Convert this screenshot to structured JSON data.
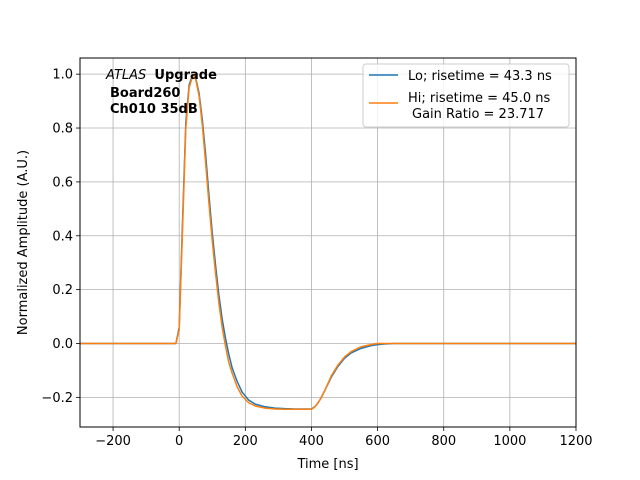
{
  "chart_data": {
    "type": "line",
    "xlabel": "Time [ns]",
    "ylabel": "Normalized Amplitude (A.U.)",
    "xlim": [
      -300,
      1200
    ],
    "ylim": [
      -0.31,
      1.06
    ],
    "x_ticks": [
      -200,
      0,
      200,
      400,
      600,
      800,
      1000,
      1200
    ],
    "y_ticks": [
      -0.2,
      0.0,
      0.2,
      0.4,
      0.6,
      0.8,
      1.0
    ],
    "x_tick_labels": [
      "−200",
      "0",
      "200",
      "400",
      "600",
      "800",
      "1000",
      "1200"
    ],
    "y_tick_labels": [
      "−0.2",
      "0.0",
      "0.2",
      "0.4",
      "0.6",
      "0.8",
      "1.0"
    ],
    "grid": true,
    "legend_position": "top-right",
    "annotation": {
      "atlas": "ATLAS",
      "upgrade": "Upgrade",
      "board": "Board260",
      "channel": "Ch010 35dB"
    },
    "series": [
      {
        "name": "Lo; risetime = 43.3 ns",
        "color": "#1f77b4",
        "x": [
          -300,
          -10,
          0,
          10,
          20,
          30,
          40,
          45,
          50,
          60,
          70,
          80,
          90,
          100,
          110,
          120,
          130,
          140,
          150,
          160,
          175,
          190,
          210,
          230,
          260,
          290,
          320,
          350,
          380,
          400,
          410,
          420,
          430,
          440,
          450,
          460,
          480,
          500,
          520,
          550,
          580,
          600,
          620,
          650,
          700,
          1200
        ],
        "y": [
          0.0,
          0.0,
          0.06,
          0.45,
          0.82,
          0.96,
          0.995,
          1.0,
          0.985,
          0.93,
          0.83,
          0.7,
          0.55,
          0.41,
          0.29,
          0.18,
          0.09,
          0.02,
          -0.04,
          -0.09,
          -0.14,
          -0.18,
          -0.21,
          -0.225,
          -0.235,
          -0.24,
          -0.242,
          -0.243,
          -0.243,
          -0.243,
          -0.235,
          -0.22,
          -0.2,
          -0.175,
          -0.15,
          -0.125,
          -0.085,
          -0.055,
          -0.035,
          -0.018,
          -0.008,
          -0.004,
          -0.002,
          0.0,
          0.0,
          0.0
        ]
      },
      {
        "name": "Hi; risetime = 45.0 ns",
        "name_line2": "Gain Ratio = 23.717",
        "color": "#ff7f0e",
        "x": [
          -300,
          -10,
          0,
          10,
          20,
          30,
          40,
          45,
          50,
          60,
          70,
          80,
          90,
          100,
          110,
          120,
          130,
          140,
          150,
          160,
          175,
          190,
          210,
          230,
          260,
          290,
          320,
          350,
          380,
          400,
          410,
          420,
          430,
          440,
          450,
          460,
          480,
          500,
          520,
          550,
          580,
          600,
          620,
          650,
          700,
          1200
        ],
        "y": [
          0.0,
          0.0,
          0.05,
          0.42,
          0.8,
          0.95,
          0.99,
          1.0,
          0.98,
          0.92,
          0.81,
          0.67,
          0.52,
          0.38,
          0.26,
          0.15,
          0.06,
          -0.01,
          -0.07,
          -0.11,
          -0.16,
          -0.195,
          -0.22,
          -0.232,
          -0.24,
          -0.243,
          -0.244,
          -0.244,
          -0.244,
          -0.244,
          -0.236,
          -0.22,
          -0.2,
          -0.175,
          -0.148,
          -0.12,
          -0.08,
          -0.05,
          -0.03,
          -0.012,
          -0.004,
          0.0,
          0.0,
          0.0,
          0.0,
          0.0
        ]
      }
    ]
  }
}
